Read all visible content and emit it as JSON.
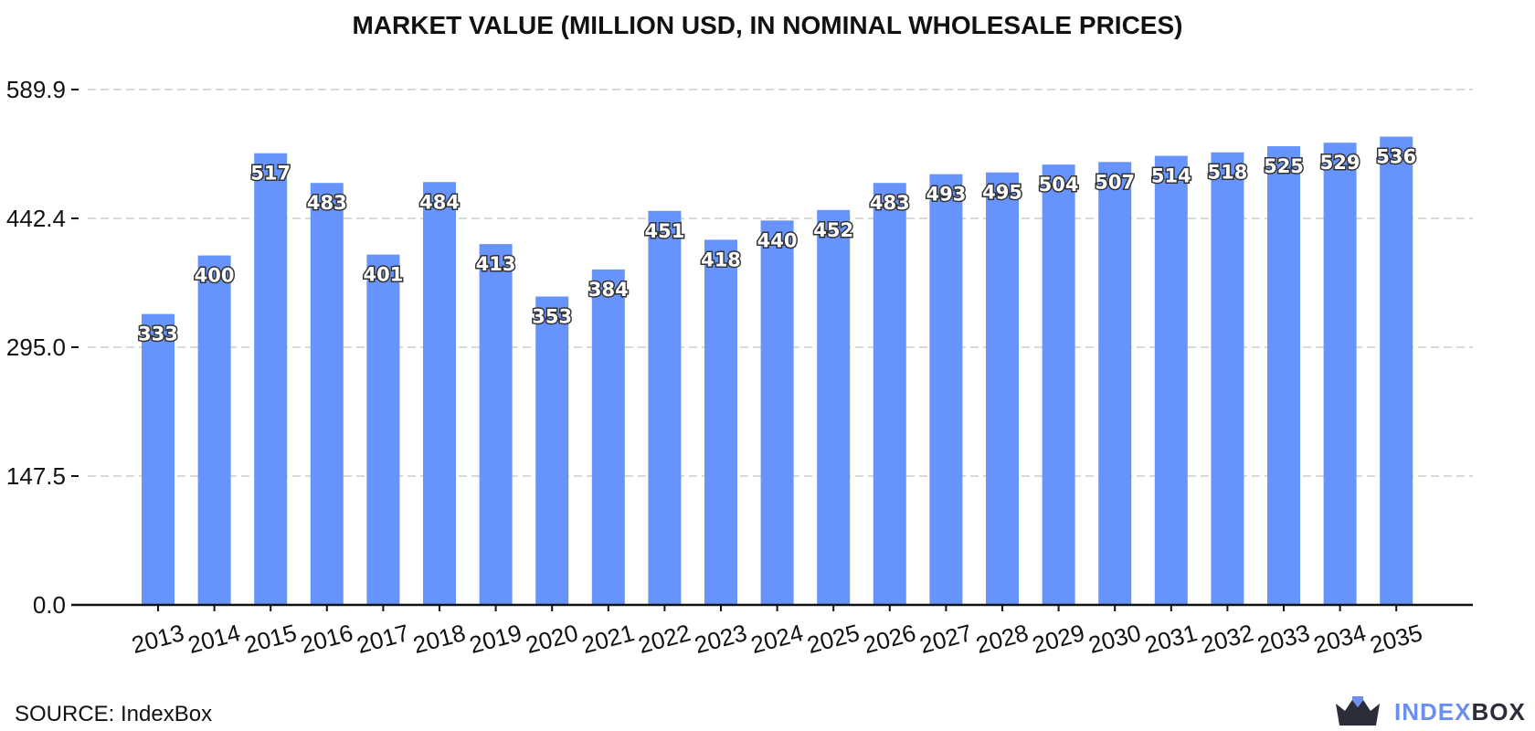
{
  "chart_data": {
    "type": "bar",
    "title": "MARKET VALUE (MILLION USD, IN NOMINAL WHOLESALE PRICES)",
    "xlabel": "",
    "ylabel": "",
    "categories": [
      "2013",
      "2014",
      "2015",
      "2016",
      "2017",
      "2018",
      "2019",
      "2020",
      "2021",
      "2022",
      "2023",
      "2024",
      "2025",
      "2026",
      "2027",
      "2028",
      "2029",
      "2030",
      "2031",
      "2032",
      "2033",
      "2034",
      "2035"
    ],
    "values": [
      333,
      400,
      517,
      483,
      401,
      484,
      413,
      353,
      384,
      451,
      418,
      440,
      452,
      483,
      493,
      495,
      504,
      507,
      514,
      518,
      525,
      529,
      536
    ],
    "data_labels": [
      "333",
      "400",
      "517",
      "483",
      "401",
      "484",
      "413",
      "353",
      "384",
      "451",
      "418",
      "440",
      "452",
      "483",
      "493",
      "495",
      "504",
      "507",
      "514",
      "518",
      "525",
      "529",
      "536"
    ],
    "yticks": [
      0.0,
      147.5,
      295.0,
      442.4,
      589.9
    ],
    "ytick_labels": [
      "0.0",
      "147.5",
      "295.0",
      "442.4",
      "589.9"
    ],
    "ylim": [
      0,
      589.9
    ],
    "grid": "horizontal dashed",
    "bar_color": "#6694fc",
    "grid_color": "#d9d9d9"
  },
  "footer": {
    "source": "SOURCE: IndexBox"
  },
  "brand": {
    "name_part1": "INDEX",
    "name_part2": "BOX",
    "icon": "crown-box-icon"
  }
}
